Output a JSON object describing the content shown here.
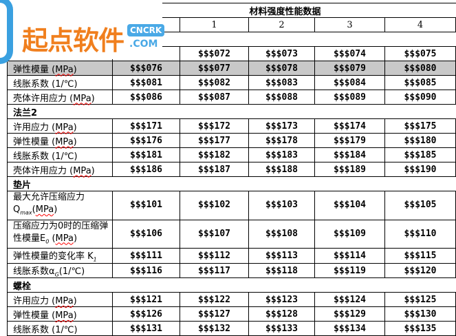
{
  "title": "材料强度性能数据",
  "columns": [
    "1",
    "2",
    "3",
    "4"
  ],
  "logo": {
    "brand": "起点软件",
    "badge": "CNCRK",
    "domain": ".COM"
  },
  "rows": [
    {
      "type": "data",
      "label": "",
      "values": [
        "$$$072",
        "$$$073",
        "$$$074",
        "$$$075"
      ]
    },
    {
      "type": "data",
      "label": "弹性模量 (",
      "unit": "MPa",
      "suffix": ")",
      "values": [
        "$$$076",
        "$$$077",
        "$$$078",
        "$$$079",
        "$$$080"
      ],
      "highlight": true
    },
    {
      "type": "data",
      "label": "线胀系数 (1/℃)",
      "values": [
        "$$$081",
        "$$$082",
        "$$$083",
        "$$$084",
        "$$$085"
      ]
    },
    {
      "type": "data",
      "label": "壳体许用应力 (",
      "unit": "MPa",
      "suffix": ")",
      "values": [
        "$$$086",
        "$$$087",
        "$$$088",
        "$$$089",
        "$$$090"
      ]
    },
    {
      "type": "section",
      "label": "法兰2"
    },
    {
      "type": "data",
      "label": "许用应力 (",
      "unit": "MPa",
      "suffix": ")",
      "values": [
        "$$$171",
        "$$$172",
        "$$$173",
        "$$$174",
        "$$$175"
      ]
    },
    {
      "type": "data",
      "label": "弹性模量 (",
      "unit": "MPa",
      "suffix": ")",
      "values": [
        "$$$176",
        "$$$177",
        "$$$178",
        "$$$179",
        "$$$180"
      ]
    },
    {
      "type": "data",
      "label": "线胀系数 (1/℃)",
      "values": [
        "$$$181",
        "$$$182",
        "$$$183",
        "$$$184",
        "$$$185"
      ]
    },
    {
      "type": "data",
      "label": "壳体许用应力 (",
      "unit": "MPa",
      "suffix": ")",
      "values": [
        "$$$186",
        "$$$187",
        "$$$188",
        "$$$189",
        "$$$190"
      ]
    },
    {
      "type": "section",
      "label": "垫片"
    },
    {
      "type": "tall",
      "label": "最大允许压缩应力Q",
      "sub": "max",
      "label2": "(",
      "unit": "MPa",
      "suffix": ")",
      "values": [
        "$$$101",
        "$$$102",
        "$$$103",
        "$$$104",
        "$$$105"
      ]
    },
    {
      "type": "tall",
      "label": "压缩应力为0时的压缩弹性模量E",
      "sub": "0",
      "label2": " (",
      "unit": "MPa",
      "suffix": ")",
      "values": [
        "$$$106",
        "$$$107",
        "$$$108",
        "$$$109",
        "$$$110"
      ]
    },
    {
      "type": "data",
      "label": "弹性模量的变化率 K",
      "sub": "1",
      "values": [
        "$$$111",
        "$$$112",
        "$$$113",
        "$$$114",
        "$$$115"
      ]
    },
    {
      "type": "data",
      "label": "线胀系数α",
      "sub": "G",
      "suffix": "(1/℃)",
      "values": [
        "$$$116",
        "$$$117",
        "$$$118",
        "$$$119",
        "$$$120"
      ]
    },
    {
      "type": "section",
      "label": "螺栓"
    },
    {
      "type": "data",
      "label": "许用应力 (",
      "unit": "MPa",
      "suffix": ")",
      "values": [
        "$$$121",
        "$$$122",
        "$$$123",
        "$$$124",
        "$$$125"
      ]
    },
    {
      "type": "data",
      "label": "弹性模量 (",
      "unit": "MPa",
      "suffix": ")",
      "values": [
        "$$$126",
        "$$$127",
        "$$$128",
        "$$$129",
        "$$$130"
      ]
    },
    {
      "type": "data",
      "label": "线胀系数 (1/℃)",
      "values": [
        "$$$131",
        "$$$132",
        "$$$133",
        "$$$134",
        "$$$135"
      ]
    }
  ]
}
